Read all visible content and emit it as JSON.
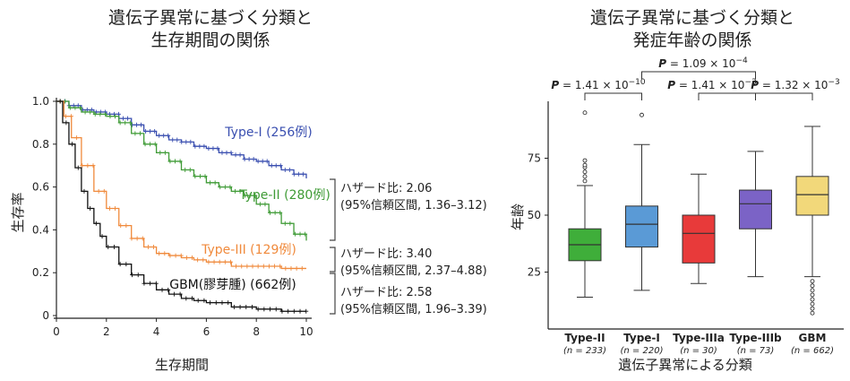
{
  "chart_data": [
    {
      "type": "line",
      "title": [
        "遺伝子異常に基づく分類と",
        "生存期間の関係"
      ],
      "xlabel": "生存期間",
      "ylabel": "生存率",
      "xlim": [
        0,
        10
      ],
      "ylim": [
        0,
        1.0
      ],
      "xticks": [
        "0",
        "2",
        "4",
        "6",
        "8",
        "10"
      ],
      "yticks": [
        "0",
        "0.2",
        "0.4",
        "0.6",
        "0.8",
        "1.0"
      ],
      "grid": false,
      "series": [
        {
          "name": "Type-I (256例)",
          "color": "#3a4fb0",
          "x": [
            0,
            0.5,
            1,
            1.5,
            2,
            2.5,
            3,
            3.5,
            4,
            4.5,
            5,
            5.5,
            6,
            6.5,
            7,
            7.5,
            8,
            8.5,
            9,
            9.5,
            10
          ],
          "y": [
            1.0,
            0.98,
            0.96,
            0.95,
            0.94,
            0.92,
            0.89,
            0.86,
            0.84,
            0.82,
            0.81,
            0.79,
            0.78,
            0.76,
            0.75,
            0.73,
            0.72,
            0.7,
            0.68,
            0.66,
            0.64
          ]
        },
        {
          "name": "Type-II (280例)",
          "color": "#3f9b36",
          "x": [
            0,
            0.5,
            1,
            1.5,
            2,
            2.5,
            3,
            3.5,
            4,
            4.5,
            5,
            5.5,
            6,
            6.5,
            7,
            7.5,
            8,
            8.5,
            9,
            9.5,
            10
          ],
          "y": [
            1.0,
            0.97,
            0.95,
            0.94,
            0.93,
            0.9,
            0.85,
            0.8,
            0.76,
            0.72,
            0.68,
            0.65,
            0.62,
            0.6,
            0.58,
            0.56,
            0.52,
            0.48,
            0.43,
            0.38,
            0.35
          ]
        },
        {
          "name": "Type-III (129例)",
          "color": "#f08a3c",
          "x": [
            0,
            0.3,
            0.6,
            1.0,
            1.5,
            2.0,
            2.5,
            3.0,
            3.5,
            4.0,
            4.5,
            5.0,
            5.5,
            6.0,
            7.0,
            8.0,
            9.0,
            10.0
          ],
          "y": [
            1.0,
            0.93,
            0.83,
            0.7,
            0.58,
            0.5,
            0.42,
            0.36,
            0.32,
            0.29,
            0.28,
            0.27,
            0.26,
            0.25,
            0.23,
            0.23,
            0.22,
            0.22
          ]
        },
        {
          "name": "GBM(膠芽腫) (662例)",
          "color": "#111111",
          "x": [
            0,
            0.25,
            0.5,
            0.75,
            1.0,
            1.25,
            1.5,
            1.75,
            2.0,
            2.5,
            3.0,
            3.5,
            4.0,
            4.5,
            5.0,
            5.5,
            6.0,
            7.0,
            8.0,
            9.0,
            10.0
          ],
          "y": [
            1.0,
            0.9,
            0.8,
            0.69,
            0.58,
            0.5,
            0.43,
            0.37,
            0.32,
            0.24,
            0.19,
            0.15,
            0.12,
            0.1,
            0.08,
            0.07,
            0.06,
            0.04,
            0.03,
            0.02,
            0.02
          ]
        }
      ],
      "annotations": [
        {
          "lines": [
            "ハザード比: 2.06",
            "(95%信頼区間, 1.36–3.12)"
          ]
        },
        {
          "lines": [
            "ハザード比: 3.40",
            "(95%信頼区間, 2.37–4.88)"
          ]
        },
        {
          "lines": [
            "ハザード比: 2.58",
            "(95%信頼区間, 1.96–3.39)"
          ]
        }
      ]
    },
    {
      "type": "box",
      "title": [
        "遺伝子異常に基づく分類と",
        "発症年齢の関係"
      ],
      "xlabel": "遺伝子異常による分類",
      "ylabel": "年齢",
      "ylim": [
        0,
        100
      ],
      "yticks": [
        "25",
        "50",
        "75"
      ],
      "categories": [
        {
          "name": "Type-II",
          "n": "(n = 233)",
          "color": "#3fae3a",
          "min": 14,
          "q1": 30,
          "median": 37,
          "q3": 44,
          "max": 63,
          "outliers": [
            65,
            67,
            69,
            71,
            72,
            74,
            95
          ]
        },
        {
          "name": "Type-I",
          "n": "(n = 220)",
          "color": "#5a9ad6",
          "min": 17,
          "q1": 36,
          "median": 46,
          "q3": 54,
          "max": 81,
          "outliers": [
            94
          ]
        },
        {
          "name": "Type-IIIa",
          "n": "(n = 30)",
          "color": "#e83a3a",
          "min": 20,
          "q1": 29,
          "median": 42,
          "q3": 50,
          "max": 68,
          "outliers": []
        },
        {
          "name": "Type-IIIb",
          "n": "(n = 73)",
          "color": "#7b63c6",
          "min": 23,
          "q1": 44,
          "median": 55,
          "q3": 61,
          "max": 78,
          "outliers": []
        },
        {
          "name": "GBM",
          "n": "(n = 662)",
          "color": "#f2d87a",
          "min": 23,
          "q1": 50,
          "median": 59,
          "q3": 67,
          "max": 89,
          "outliers": [
            21,
            19,
            17,
            15,
            13,
            11,
            9,
            7
          ]
        }
      ],
      "comparisons": [
        {
          "from": 0,
          "to": 1,
          "p": "1.41 × 10",
          "exp": "−10"
        },
        {
          "from": 1,
          "to": 3,
          "p": "1.09 × 10",
          "exp": "−4"
        },
        {
          "from": 2,
          "to": 3,
          "p": "1.41 × 10",
          "exp": "−3"
        },
        {
          "from": 3,
          "to": 4,
          "p": "1.32 × 10",
          "exp": "−3"
        }
      ]
    }
  ]
}
